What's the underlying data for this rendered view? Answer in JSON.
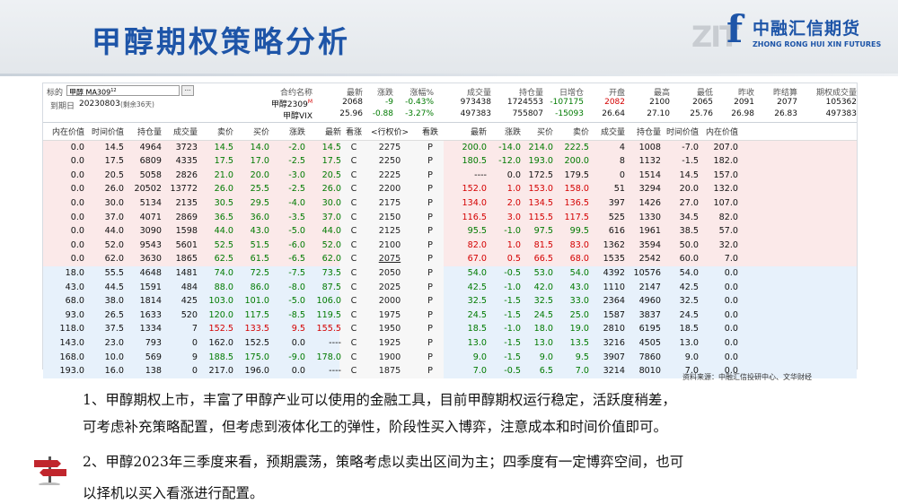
{
  "slide": {
    "title": "甲醇期权策略分析",
    "watermark": "ZIT",
    "logo": {
      "cn": "中融汇信期货",
      "en": "ZHONG RONG HUI XIN FUTURES"
    }
  },
  "info": {
    "target_label": "标的",
    "target_value": "甲醇 MA309",
    "target_sup": "12",
    "target_btn": "···",
    "expiry_label": "到期日",
    "expiry_value": "20230803",
    "expiry_note": "(剩余36天)",
    "headers": [
      "合约名称",
      "最新",
      "涨跌",
      "涨幅%",
      "成交量",
      "持仓量",
      "日增仓",
      "开盘",
      "最高",
      "最低",
      "昨收",
      "昨结算",
      "期权成交量"
    ],
    "rows": [
      {
        "name": "甲醇2309",
        "mark": "M",
        "values": [
          "2068",
          "-9",
          "-0.43%",
          "973438",
          "1724553",
          "-107175",
          "2082",
          "2100",
          "2065",
          "2091",
          "2077",
          "105362"
        ]
      },
      {
        "name": "甲醇VIX",
        "mark": "",
        "values": [
          "25.96",
          "-0.88",
          "-3.27%",
          "497383",
          "755807",
          "-15093",
          "26.64",
          "27.10",
          "25.76",
          "26.98",
          "26.83",
          "497383"
        ]
      }
    ]
  },
  "table": {
    "headers": [
      "内在价值",
      "时间价值",
      "持仓量",
      "成交量",
      "卖价",
      "买价",
      "涨跌",
      "最新",
      "看涨",
      "<行权价>",
      "看跌",
      "最新",
      "涨跌",
      "买价",
      "卖价",
      "成交量",
      "持仓量",
      "时间价值",
      "内在价值"
    ],
    "rows": [
      [
        "0.0",
        "14.5",
        "4964",
        "3723",
        "14.5",
        "14.0",
        "-2.0",
        "14.5",
        "C",
        "2275",
        "P",
        "200.0",
        "-14.0",
        "214.0",
        "222.5",
        "4",
        "1008",
        "-7.0",
        "207.0"
      ],
      [
        "0.0",
        "17.5",
        "6809",
        "4335",
        "17.5",
        "17.0",
        "-2.5",
        "17.5",
        "C",
        "2250",
        "P",
        "180.5",
        "-12.0",
        "193.0",
        "200.0",
        "8",
        "1132",
        "-1.5",
        "182.0"
      ],
      [
        "0.0",
        "20.5",
        "5058",
        "2826",
        "21.0",
        "20.0",
        "-3.0",
        "20.5",
        "C",
        "2225",
        "P",
        "----",
        "0.0",
        "172.5",
        "179.5",
        "0",
        "1514",
        "14.5",
        "157.0"
      ],
      [
        "0.0",
        "26.0",
        "20502",
        "13772",
        "26.0",
        "25.5",
        "-2.5",
        "26.0",
        "C",
        "2200",
        "P",
        "152.0",
        "1.0",
        "153.0",
        "158.0",
        "51",
        "3294",
        "20.0",
        "132.0"
      ],
      [
        "0.0",
        "30.0",
        "5134",
        "2135",
        "30.5",
        "29.5",
        "-4.0",
        "30.0",
        "C",
        "2175",
        "P",
        "134.0",
        "2.0",
        "134.5",
        "136.5",
        "397",
        "1426",
        "27.0",
        "107.0"
      ],
      [
        "0.0",
        "37.0",
        "4071",
        "2869",
        "36.5",
        "36.0",
        "-3.5",
        "37.0",
        "C",
        "2150",
        "P",
        "116.5",
        "3.0",
        "115.5",
        "117.5",
        "525",
        "1330",
        "34.5",
        "82.0"
      ],
      [
        "0.0",
        "44.0",
        "3090",
        "1598",
        "44.0",
        "43.0",
        "-5.0",
        "44.0",
        "C",
        "2125",
        "P",
        "95.5",
        "-1.0",
        "97.5",
        "99.5",
        "616",
        "1961",
        "38.5",
        "57.0"
      ],
      [
        "0.0",
        "52.0",
        "9543",
        "5601",
        "52.5",
        "51.5",
        "-6.0",
        "52.0",
        "C",
        "2100",
        "P",
        "82.0",
        "1.0",
        "81.5",
        "83.0",
        "1362",
        "3594",
        "50.0",
        "32.0"
      ],
      [
        "0.0",
        "62.0",
        "3630",
        "1865",
        "62.5",
        "61.5",
        "-6.5",
        "62.0",
        "C",
        "2075",
        "P",
        "67.0",
        "0.5",
        "66.5",
        "68.0",
        "1535",
        "2542",
        "60.0",
        "7.0"
      ],
      [
        "18.0",
        "55.5",
        "4648",
        "1481",
        "74.0",
        "72.5",
        "-7.5",
        "73.5",
        "C",
        "2050",
        "P",
        "54.0",
        "-0.5",
        "53.0",
        "54.0",
        "4392",
        "10576",
        "54.0",
        "0.0"
      ],
      [
        "43.0",
        "44.5",
        "1591",
        "484",
        "88.0",
        "86.0",
        "-8.0",
        "87.5",
        "C",
        "2025",
        "P",
        "42.5",
        "-1.0",
        "42.0",
        "43.0",
        "1110",
        "2147",
        "42.5",
        "0.0"
      ],
      [
        "68.0",
        "38.0",
        "1814",
        "425",
        "103.0",
        "101.0",
        "-5.0",
        "106.0",
        "C",
        "2000",
        "P",
        "32.5",
        "-1.5",
        "32.5",
        "33.0",
        "2364",
        "4960",
        "32.5",
        "0.0"
      ],
      [
        "93.0",
        "26.5",
        "1633",
        "520",
        "120.0",
        "117.5",
        "-8.5",
        "119.5",
        "C",
        "1975",
        "P",
        "24.5",
        "-1.5",
        "24.5",
        "25.0",
        "1587",
        "3837",
        "24.5",
        "0.0"
      ],
      [
        "118.0",
        "37.5",
        "1334",
        "7",
        "152.5",
        "133.5",
        "9.5",
        "155.5",
        "C",
        "1950",
        "P",
        "18.5",
        "-1.0",
        "18.0",
        "19.0",
        "2810",
        "6195",
        "18.5",
        "0.0"
      ],
      [
        "143.0",
        "23.0",
        "793",
        "0",
        "162.0",
        "152.5",
        "0.0",
        "----",
        "C",
        "1925",
        "P",
        "13.0",
        "-1.5",
        "13.0",
        "13.5",
        "3216",
        "4505",
        "13.0",
        "0.0"
      ],
      [
        "168.0",
        "10.0",
        "569",
        "9",
        "188.5",
        "175.0",
        "-9.0",
        "178.0",
        "C",
        "1900",
        "P",
        "9.0",
        "-1.5",
        "9.0",
        "9.5",
        "3907",
        "7860",
        "9.0",
        "0.0"
      ],
      [
        "193.0",
        "16.0",
        "138",
        "0",
        "217.0",
        "196.0",
        "0.0",
        "----",
        "C",
        "1875",
        "P",
        "7.0",
        "-0.5",
        "6.5",
        "7.0",
        "3214",
        "8010",
        "7.0",
        "0.0"
      ]
    ]
  },
  "source": "资料来源：中融汇信投研中心、文华财经",
  "text": {
    "line1": "1、甲醇期权上市，丰富了甲醇产业可以使用的金融工具，目前甲醇期权运行稳定，活跃度稍差，",
    "line2": "可考虑补充策略配置，但考虑到液体化工的弹性，阶段性买入博弈，注意成本和时间价值即可。",
    "line3": "2、甲醇2023年三季度来看，预期震荡，策略考虑以卖出区间为主；四季度有一定博弈空间，也可",
    "line4": "以择机以买入看涨进行配置。"
  },
  "colors": {
    "title": "#1e55a8",
    "call_itm_bg": "#fbe9e9",
    "call_otm_bg": "#e7f1fb",
    "put_itm_bg": "#e7f1fb",
    "put_otm_bg": "#fbe9e9",
    "mid_bg": "#f7f7f7",
    "up": "#d40000",
    "down": "#007a00"
  },
  "icons": [
    "signpost-icon",
    "logo-f-icon"
  ]
}
